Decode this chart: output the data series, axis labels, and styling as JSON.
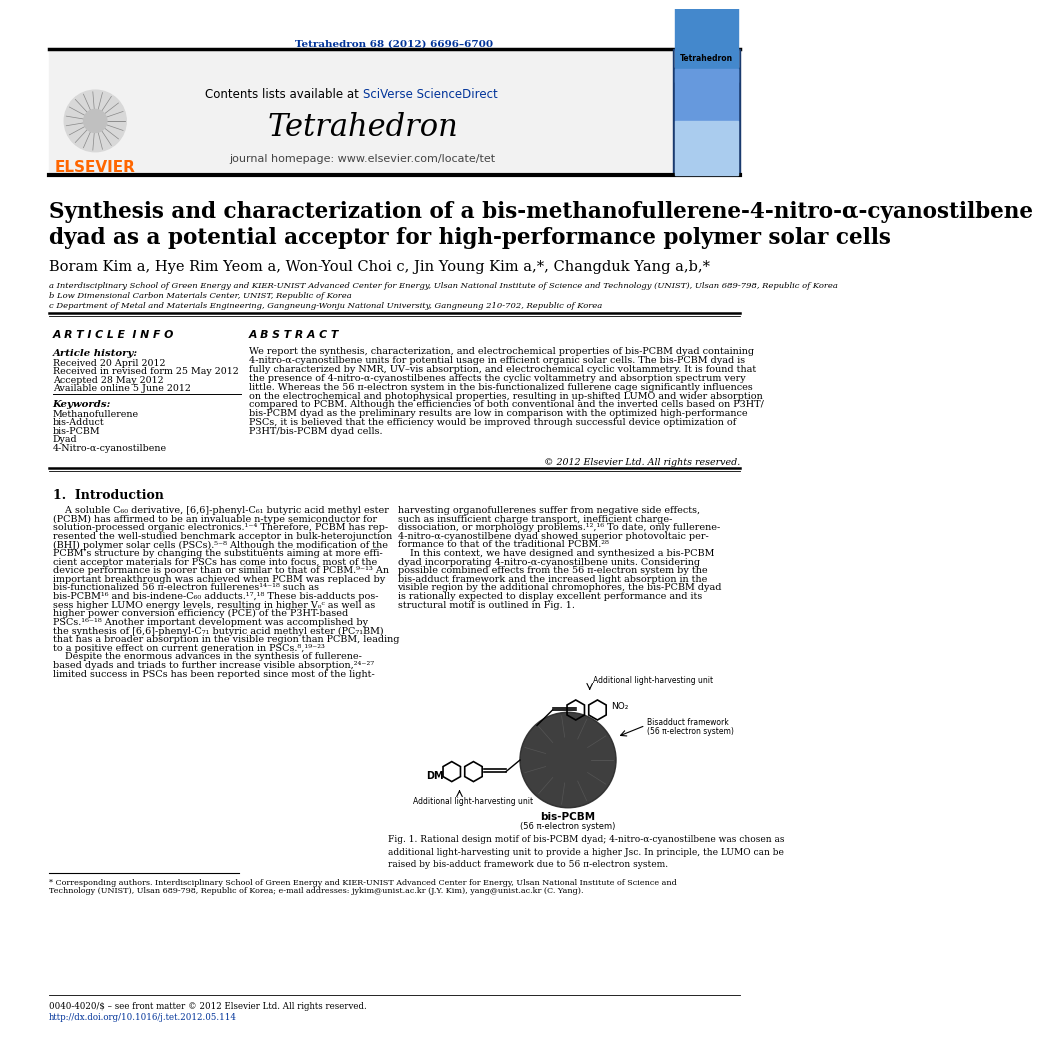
{
  "journal_ref": "Tetrahedron 68 (2012) 6696–6700",
  "journal_ref_color": "#003399",
  "contents_text": "Contents lists available at ",
  "sciverse_text": "SciVerse ScienceDirect",
  "sciverse_color": "#003399",
  "journal_name": "Tetrahedron",
  "journal_homepage": "journal homepage: www.elsevier.com/locate/tet",
  "title_line1": "Synthesis and characterization of a bis-methanofullerene-4-nitro-α-cyanostilbene",
  "title_line2": "dyad as a potential acceptor for high-performance polymer solar cells",
  "authors": "Boram Kim a, Hye Rim Yeom a, Won-Youl Choi c, Jin Young Kim a,*, Changduk Yang a,b,*",
  "affil_a": "a Interdisciplinary School of Green Energy and KIER-UNIST Advanced Center for Energy, Ulsan National Institute of Science and Technology (UNIST), Ulsan 689-798, Republic of Korea",
  "affil_b": "b Low Dimensional Carbon Materials Center, UNIST, Republic of Korea",
  "affil_c": "c Department of Metal and Materials Engineering, Gangneung-Wonju National University, Gangneung 210-702, Republic of Korea",
  "article_info_title": "A R T I C L E  I N F O",
  "abstract_title": "A B S T R A C T",
  "article_history_title": "Article history:",
  "received": "Received 20 April 2012",
  "received_revised": "Received in revised form 25 May 2012",
  "accepted": "Accepted 28 May 2012",
  "available": "Available online 5 June 2012",
  "keywords_title": "Keywords:",
  "keywords": [
    "Methanofullerene",
    "bis-Adduct",
    "bis-PCBM",
    "Dyad",
    "4-Nitro-α-cyanostilbene"
  ],
  "copyright": "© 2012 Elsevier Ltd. All rights reserved.",
  "section1_title": "1.  Introduction",
  "footnote_star": "* Corresponding authors. Interdisciplinary School of Green Energy and KIER-UNIST Advanced Center for Energy, Ulsan National Institute of Science and Technology (UNIST), Ulsan 689-798, Republic of Korea; e-mail addresses: jykim@unist.ac.kr (J.Y. Kim), yang@unist.ac.kr (C. Yang).",
  "footer_issn": "0040-4020/$ – see front matter © 2012 Elsevier Ltd. All rights reserved.",
  "footer_doi": "http://dx.doi.org/10.1016/j.tet.2012.05.114",
  "footer_doi_color": "#003399",
  "bg_color": "#ffffff",
  "orange": "#ff6600",
  "blue_link": "#003399"
}
